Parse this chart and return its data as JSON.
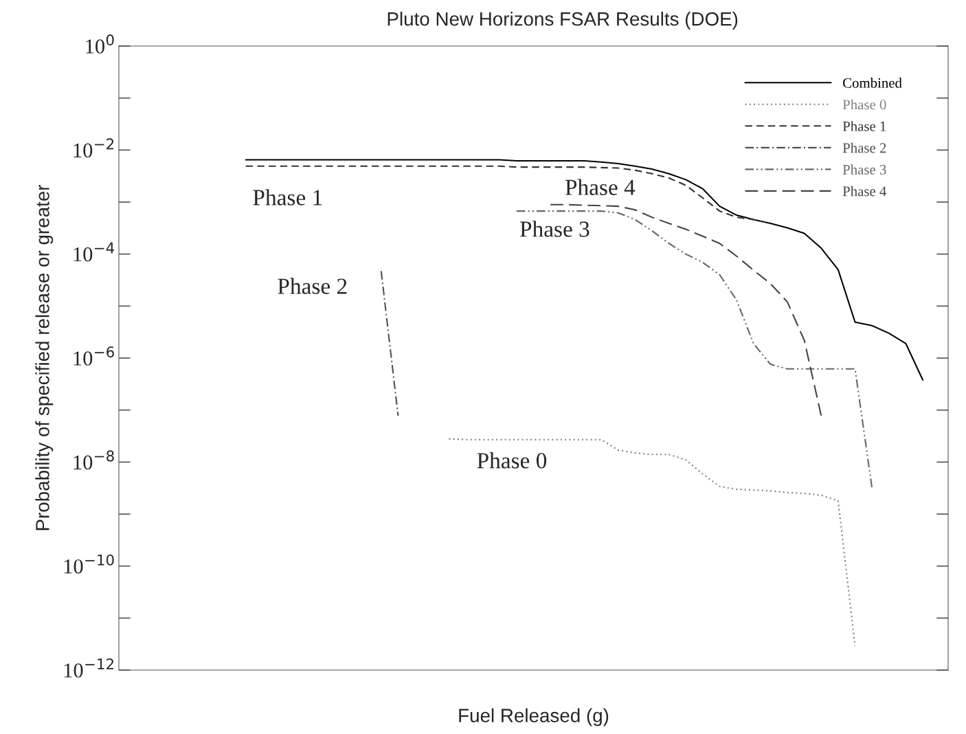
{
  "chart_data": {
    "type": "line",
    "title": "Pluto New Horizons FSAR Results (DOE)",
    "xlabel": "Fuel Released (g)",
    "ylabel": "Probability of specified release or greater",
    "log": "y",
    "legend": "top right",
    "grid": false,
    "tick_labels": "y",
    "categories": [
      null,
      null,
      null,
      null,
      null,
      null,
      null,
      null,
      null,
      null,
      null,
      null,
      null,
      null,
      null,
      null,
      null,
      null,
      null,
      null,
      null,
      null,
      null,
      null,
      null,
      null,
      null,
      null,
      null,
      null,
      null,
      null,
      null,
      null,
      null,
      null,
      null,
      null,
      null,
      null,
      null,
      null,
      null,
      null,
      null,
      null,
      null,
      null,
      null
    ],
    "ylim": [
      1e-12,
      1
    ],
    "yticks": [
      {
        "value": 1,
        "label": "10$^{0}$"
      },
      {
        "value": 0.01,
        "label": "10$^{−2}$"
      },
      {
        "value": 0.0001,
        "label": "10$^{−4}$"
      },
      {
        "value": 1e-06,
        "label": "10$^{−6}$"
      },
      {
        "value": 1e-08,
        "label": "10$^{−8}$"
      },
      {
        "value": 1e-10,
        "label": "10$^{−10}$"
      },
      {
        "value": 1e-12,
        "label": "10$^{−12}$"
      }
    ],
    "series": [
      {
        "name": "Combined",
        "color": "#000000",
        "line_style": "solid",
        "values": [
          null,
          null,
          null,
          null,
          null,
          null,
          null,
          0.0065,
          0.0065,
          0.0065,
          0.0065,
          0.0065,
          0.0065,
          0.0065,
          0.0065,
          0.0065,
          0.0065,
          0.0065,
          0.0065,
          0.0065,
          0.0065,
          0.0065,
          0.0065,
          0.0062,
          0.0062,
          0.0062,
          0.0062,
          0.0062,
          0.0059,
          0.0055,
          0.0049,
          0.0043,
          0.0035,
          0.0027,
          0.0018,
          0.00083,
          0.00056,
          0.00046,
          0.00039,
          0.00032,
          0.00025,
          0.00013,
          5e-05,
          4.9e-06,
          4.2e-06,
          3e-06,
          1.9e-06,
          3.8e-07,
          null
        ]
      },
      {
        "name": "Phase 0",
        "color": "#808080",
        "line_style": "dotted",
        "values": [
          null,
          null,
          null,
          null,
          null,
          null,
          null,
          null,
          null,
          null,
          null,
          null,
          null,
          null,
          null,
          null,
          null,
          null,
          null,
          2.8e-08,
          2.7e-08,
          2.7e-08,
          2.7e-08,
          2.7e-08,
          2.7e-08,
          2.7e-08,
          2.7e-08,
          2.7e-08,
          2.7e-08,
          1.7e-08,
          1.5e-08,
          1.4e-08,
          1.4e-08,
          1.1e-08,
          5.9e-09,
          3.4e-09,
          3e-09,
          2.9e-09,
          2.8e-09,
          2.6e-09,
          2.5e-09,
          2.3e-09,
          1.8e-09,
          2.9e-12,
          null,
          null,
          null,
          null,
          null
        ]
      },
      {
        "name": "Phase 1",
        "color": "#333333",
        "line_style": "dashed",
        "values": [
          null,
          null,
          null,
          null,
          null,
          null,
          null,
          0.0049,
          0.0049,
          0.0049,
          0.0049,
          0.0049,
          0.0049,
          0.0049,
          0.0049,
          0.0049,
          0.0049,
          0.0049,
          0.0049,
          0.0049,
          0.0049,
          0.0049,
          0.0049,
          0.0047,
          0.0047,
          0.0047,
          0.0047,
          0.0047,
          0.0046,
          0.0045,
          0.0041,
          0.0035,
          0.0029,
          0.0021,
          0.0012,
          0.00067,
          0.00051,
          0.00046,
          0.00039,
          null,
          null,
          null,
          null,
          null,
          null,
          null,
          null,
          null,
          null
        ]
      },
      {
        "name": "Phase 2",
        "color": "#4f4f4f",
        "line_style": "dashdot",
        "values": [
          null,
          null,
          null,
          null,
          null,
          null,
          null,
          null,
          null,
          null,
          null,
          null,
          null,
          null,
          null,
          4.7e-05,
          7.8e-08,
          null,
          null,
          null,
          null,
          null,
          null,
          null,
          null,
          null,
          null,
          null,
          null,
          null,
          null,
          null,
          null,
          null,
          null,
          null,
          null,
          null,
          null,
          null,
          null,
          null,
          null,
          null,
          null,
          null,
          null,
          null,
          null
        ]
      },
      {
        "name": "Phase 3",
        "color": "#666666",
        "line_style": "dashdotdot",
        "values": [
          null,
          null,
          null,
          null,
          null,
          null,
          null,
          null,
          null,
          null,
          null,
          null,
          null,
          null,
          null,
          null,
          null,
          null,
          null,
          null,
          null,
          null,
          null,
          0.00067,
          0.00067,
          0.00067,
          0.00067,
          0.00067,
          0.00067,
          0.00062,
          0.00046,
          0.00028,
          0.00016,
          0.0001,
          6.9e-05,
          4e-05,
          1.3e-05,
          1.9e-06,
          7.6e-07,
          6.2e-07,
          6.2e-07,
          6.2e-07,
          6.2e-07,
          6.2e-07,
          3.2e-09,
          null,
          null,
          null,
          null
        ]
      },
      {
        "name": "Phase 4",
        "color": "#444444",
        "line_style": "longdash",
        "values": [
          null,
          null,
          null,
          null,
          null,
          null,
          null,
          null,
          null,
          null,
          null,
          null,
          null,
          null,
          null,
          null,
          null,
          null,
          null,
          null,
          null,
          null,
          null,
          null,
          null,
          0.00089,
          0.00089,
          0.00087,
          0.00085,
          0.00083,
          0.00071,
          0.00051,
          0.00039,
          0.0003,
          0.00022,
          0.00016,
          9.1e-05,
          4.9e-05,
          2.7e-05,
          1.2e-05,
          2.2e-06,
          7.8e-08,
          null,
          null,
          null,
          null,
          null,
          null,
          null
        ]
      }
    ],
    "annotations": [
      "Phase 0",
      "Phase 1",
      "Phase 2",
      "Phase 3",
      "Phase 4"
    ]
  }
}
